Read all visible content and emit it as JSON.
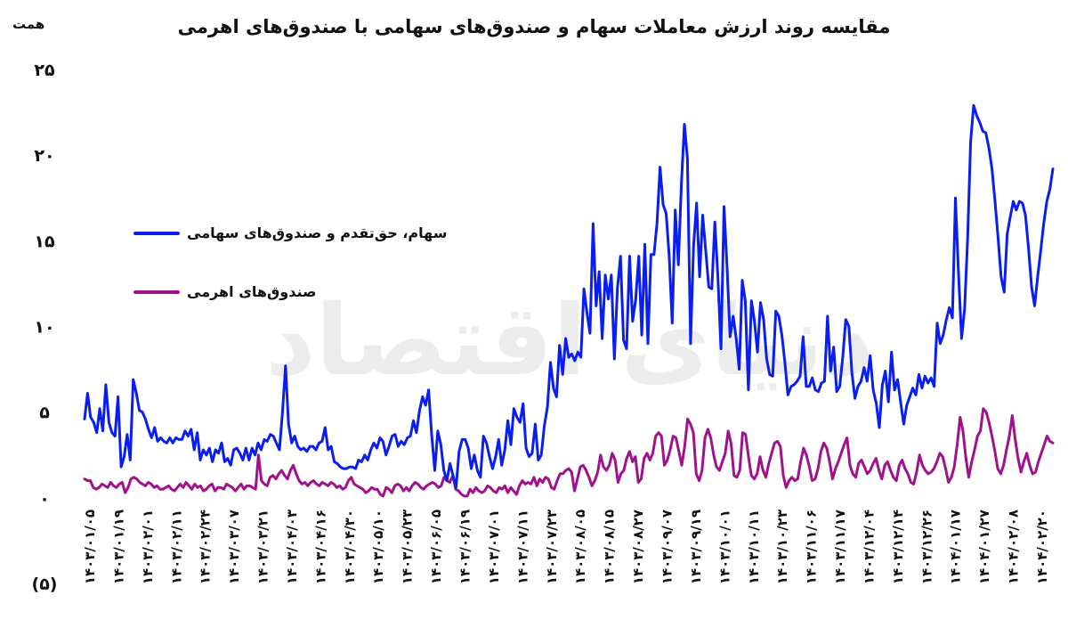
{
  "chart_data": {
    "type": "line",
    "title": "مقایسه روند ارزش معاملات سهام و صندوق‌های سهامی با صندوق‌های اهرمی",
    "unit_label": "همت",
    "ylim": [
      -5,
      25
    ],
    "yticks": [
      {
        "value": 25,
        "label": "۲۵"
      },
      {
        "value": 20,
        "label": "۲۰"
      },
      {
        "value": 15,
        "label": "۱۵"
      },
      {
        "value": 10,
        "label": "۱۰"
      },
      {
        "value": 5,
        "label": "۵"
      },
      {
        "value": 0,
        "label": "۰"
      },
      {
        "value": -5,
        "label": "(۵)"
      }
    ],
    "x_tick_labels": [
      "۱۴۰۳/۰۱/۰۵",
      "۱۴۰۳/۰۱/۱۹",
      "۱۴۰۳/۰۲/۰۱",
      "۱۴۰۳/۰۲/۱۱",
      "۱۴۰۳/۰۲/۲۴",
      "۱۴۰۳/۰۳/۰۷",
      "۱۴۰۳/۰۳/۲۱",
      "۱۴۰۳/۰۴/۰۳",
      "۱۴۰۳/۰۴/۱۶",
      "۱۴۰۳/۰۴/۳۰",
      "۱۴۰۳/۰۵/۱۰",
      "۱۴۰۳/۰۵/۲۳",
      "۱۴۰۳/۰۶/۰۵",
      "۱۴۰۳/۰۶/۱۹",
      "۱۴۰۳/۰۷/۰۱",
      "۱۴۰۳/۰۷/۱۱",
      "۱۴۰۳/۰۷/۲۳",
      "۱۴۰۳/۰۸/۰۵",
      "۱۴۰۳/۰۸/۱۵",
      "۱۴۰۳/۰۸/۲۷",
      "۱۴۰۳/۰۹/۰۷",
      "۱۴۰۳/۰۹/۱۹",
      "۱۴۰۳/۱۰/۰۱",
      "۱۴۰۳/۱۰/۱۱",
      "۱۴۰۳/۱۰/۲۳",
      "۱۴۰۳/۱۱/۰۶",
      "۱۴۰۳/۱۱/۱۷",
      "۱۴۰۳/۱۲/۰۴",
      "۱۴۰۳/۱۲/۱۴",
      "۱۴۰۳/۱۲/۲۶",
      "۱۴۰۴/۰۱/۱۷",
      "۱۴۰۴/۰۱/۲۷",
      "۱۴۰۴/۰۲/۰۸",
      "۱۴۰۴/۰۲/۲۰"
    ],
    "grid": false,
    "legend_position": "left",
    "series": [
      {
        "name": "سهام، حق‌تقدم و صندوق‌های سهامی",
        "color": "#0a1ef0",
        "values": [
          4.6,
          6.1,
          4.7,
          4.4,
          3.8,
          5.2,
          3.9,
          6.6,
          4.4,
          3.8,
          3.6,
          5.9,
          1.8,
          2.4,
          3.7,
          2.2,
          6.9,
          6.1,
          5.1,
          5.0,
          4.6,
          4.0,
          3.5,
          4.1,
          3.3,
          3.5,
          3.3,
          3.2,
          3.5,
          3.2,
          3.5,
          3.4,
          3.4,
          3.9,
          3.6,
          4.0,
          2.8,
          3.8,
          2.2,
          2.8,
          2.5,
          2.9,
          2.1,
          2.8,
          2.6,
          3.2,
          2.1,
          2.3,
          1.9,
          2.8,
          2.9,
          2.6,
          2.2,
          2.9,
          2.2,
          2.9,
          2.5,
          3.2,
          2.8,
          3.4,
          3.3,
          3.7,
          3.6,
          3.2,
          2.8,
          5.0,
          7.7,
          4.3,
          3.2,
          3.6,
          3.0,
          2.8,
          2.9,
          2.7,
          3.0,
          3.0,
          2.8,
          3.2,
          3.3,
          4.1,
          2.8,
          3.0,
          2.1,
          2.0,
          1.8,
          1.7,
          1.7,
          1.8,
          1.8,
          1.7,
          2.2,
          2.1,
          2.5,
          2.2,
          2.8,
          3.2,
          2.9,
          3.5,
          3.3,
          2.5,
          3.0,
          3.6,
          3.7,
          3.0,
          3.3,
          3.1,
          3.5,
          3.6,
          4.5,
          3.8,
          5.1,
          5.9,
          5.4,
          6.3,
          3.7,
          1.6,
          3.9,
          3.1,
          1.6,
          1.0,
          2.0,
          1.3,
          0.6,
          2.7,
          3.4,
          3.4,
          2.9,
          1.7,
          2.5,
          1.6,
          1.2,
          3.6,
          3.2,
          2.4,
          1.7,
          2.4,
          3.4,
          1.9,
          2.8,
          4.5,
          3.1,
          5.2,
          4.7,
          4.4,
          5.5,
          2.9,
          2.4,
          2.6,
          4.3,
          2.2,
          2.5,
          4.2,
          5.3,
          7.9,
          6.4,
          5.9,
          8.9,
          7.2,
          9.3,
          8.2,
          8.4,
          8.0,
          8.5,
          8.2,
          12.2,
          10.8,
          9.6,
          16.0,
          11.2,
          13.2,
          9.3,
          13.0,
          11.6,
          13.0,
          8.1,
          12.2,
          14.1,
          9.2,
          8.7,
          14.1,
          10.3,
          11.6,
          14.1,
          9.5,
          14.8,
          9.0,
          14.2,
          14.2,
          16.0,
          19.3,
          17.1,
          16.6,
          14.1,
          10.2,
          16.8,
          13.6,
          18.3,
          21.8,
          19.8,
          9.0,
          14.7,
          17.2,
          12.9,
          16.5,
          14.4,
          12.3,
          12.2,
          16.1,
          12.9,
          8.7,
          17.0,
          13.5,
          9.4,
          10.6,
          9.3,
          7.5,
          12.7,
          11.5,
          6.3,
          11.5,
          10.3,
          8.5,
          11.4,
          10.4,
          8.1,
          7.2,
          7.1,
          10.9,
          10.6,
          9.5,
          7.9,
          6.0,
          6.5,
          6.6,
          6.8,
          7.1,
          9.4,
          6.5,
          6.5,
          7.0,
          6.3,
          6.2,
          6.7,
          6.8,
          10.6,
          7.4,
          8.8,
          6.2,
          6.5,
          8.2,
          10.4,
          10.0,
          7.3,
          5.8,
          6.5,
          6.8,
          7.6,
          6.8,
          8.3,
          6.3,
          5.5,
          4.1,
          6.6,
          7.4,
          5.6,
          8.5,
          6.3,
          6.9,
          5.6,
          4.3,
          5.4,
          5.9,
          6.4,
          6.0,
          7.2,
          6.4,
          7.1,
          6.7,
          7.0,
          6.5,
          10.2,
          9.0,
          9.5,
          10.4,
          11.1,
          10.5,
          17.5,
          13.2,
          9.3,
          11.0,
          15.1,
          20.8,
          22.9,
          22.3,
          21.9,
          21.4,
          21.3,
          20.4,
          19.2,
          17.3,
          15.2,
          12.9,
          12.0,
          15.4,
          16.4,
          17.3,
          16.8,
          17.3,
          17.2,
          16.5,
          14.6,
          12.3,
          11.2,
          12.9,
          14.4,
          16.0,
          17.3,
          18.0,
          19.2
        ]
      },
      {
        "name": "صندوق‌های اهرمی",
        "color": "#a0128c",
        "values": [
          1.1,
          1.0,
          1.0,
          0.6,
          0.5,
          0.6,
          0.8,
          0.7,
          0.6,
          0.9,
          0.7,
          0.6,
          0.8,
          0.9,
          0.3,
          0.6,
          1.1,
          1.2,
          1.1,
          0.9,
          0.8,
          0.7,
          0.9,
          0.8,
          0.6,
          0.7,
          0.5,
          0.5,
          0.6,
          0.7,
          0.5,
          0.4,
          0.6,
          0.8,
          0.6,
          0.9,
          0.7,
          0.5,
          0.8,
          0.6,
          0.7,
          0.4,
          0.5,
          0.7,
          0.8,
          0.4,
          0.6,
          0.6,
          0.5,
          0.8,
          0.7,
          0.6,
          0.4,
          0.6,
          0.8,
          0.5,
          0.7,
          0.7,
          0.6,
          0.5,
          2.5,
          1.0,
          0.8,
          0.7,
          1.2,
          1.3,
          1.1,
          1.4,
          1.6,
          1.3,
          1.1,
          1.6,
          1.9,
          1.4,
          1.0,
          0.8,
          0.9,
          0.7,
          0.9,
          1.0,
          0.8,
          0.7,
          0.9,
          0.8,
          0.7,
          0.9,
          0.8,
          0.6,
          0.7,
          0.5,
          0.6,
          1.0,
          1.2,
          0.8,
          0.7,
          0.6,
          0.5,
          0.3,
          0.4,
          0.6,
          0.5,
          0.5,
          0.2,
          0.1,
          0.6,
          0.5,
          0.3,
          0.7,
          0.8,
          0.7,
          0.4,
          0.6,
          0.4,
          0.7,
          0.9,
          0.8,
          0.6,
          0.5,
          0.7,
          0.8,
          0.9,
          0.8,
          0.6,
          0.7,
          1.2,
          1.0,
          0.9,
          1.3,
          0.5,
          0.4,
          0.2,
          0.1,
          0.1,
          0.5,
          0.3,
          0.6,
          0.4,
          0.3,
          0.4,
          0.7,
          0.6,
          0.4,
          0.3,
          0.6,
          0.5,
          0.7,
          0.3,
          0.6,
          0.4,
          0.2,
          0.7,
          1.0,
          0.8,
          0.9,
          0.8,
          1.2,
          0.7,
          1.1,
          0.9,
          1.2,
          1.1,
          0.6,
          0.5,
          1.0,
          1.4,
          1.4,
          1.6,
          1.7,
          1.5,
          0.4,
          1.1,
          1.8,
          1.9,
          1.6,
          1.2,
          0.7,
          1.0,
          1.5,
          2.5,
          1.8,
          1.6,
          1.9,
          2.6,
          2.2,
          0.9,
          1.4,
          1.6,
          2.3,
          2.7,
          2.1,
          2.4,
          0.9,
          1.1,
          2.3,
          2.6,
          2.2,
          2.6,
          3.6,
          3.8,
          3.6,
          1.9,
          2.2,
          2.8,
          3.6,
          3.5,
          2.7,
          1.9,
          3.0,
          4.6,
          4.3,
          3.8,
          1.4,
          1.0,
          1.6,
          3.5,
          4.0,
          3.5,
          2.5,
          1.8,
          1.6,
          2.1,
          2.6,
          3.9,
          3.2,
          1.3,
          1.2,
          1.6,
          3.8,
          3.7,
          2.4,
          1.3,
          1.1,
          1.4,
          2.4,
          1.6,
          1.2,
          2.0,
          2.6,
          3.2,
          3.3,
          3.0,
          1.3,
          0.6,
          1.0,
          1.2,
          1.0,
          1.1,
          2.1,
          2.9,
          2.5,
          1.8,
          1.0,
          1.1,
          1.7,
          2.7,
          3.2,
          2.9,
          2.1,
          1.1,
          1.7,
          2.1,
          2.6,
          3.1,
          3.5,
          1.9,
          1.4,
          1.2,
          2.0,
          2.2,
          1.8,
          1.4,
          1.6,
          2.0,
          2.3,
          1.6,
          1.1,
          1.9,
          2.1,
          1.6,
          1.2,
          1.0,
          1.9,
          2.2,
          1.7,
          1.4,
          0.9,
          0.8,
          1.5,
          2.5,
          1.9,
          1.6,
          1.4,
          1.5,
          1.7,
          2.1,
          2.6,
          2.4,
          1.7,
          0.9,
          1.2,
          1.8,
          3.1,
          4.7,
          3.9,
          2.3,
          1.2,
          2.1,
          2.8,
          3.6,
          3.9,
          5.2,
          5.0,
          4.4,
          3.6,
          2.7,
          1.7,
          1.4,
          1.9,
          2.8,
          3.6,
          4.8,
          3.4,
          2.3,
          1.5,
          2.1,
          2.6,
          1.9,
          1.4,
          1.5,
          2.1,
          2.6,
          3.1,
          3.6,
          3.3,
          3.2
        ]
      }
    ]
  }
}
